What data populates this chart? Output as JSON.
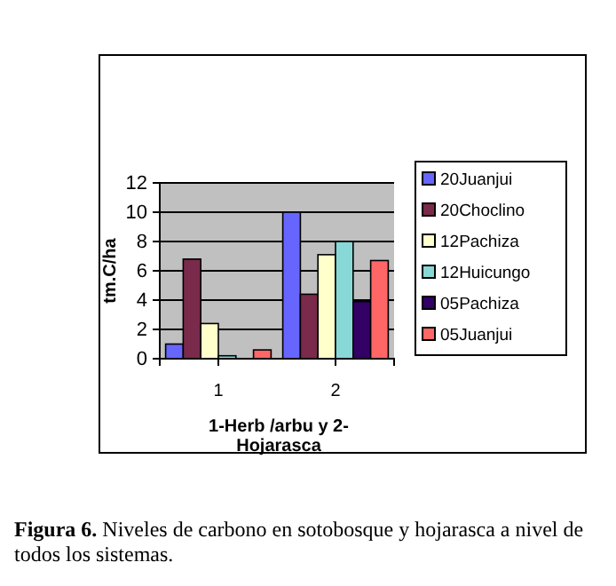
{
  "chart_data": {
    "type": "bar",
    "categories": [
      "1",
      "2"
    ],
    "series": [
      {
        "name": "20Juanjui",
        "color": "#6666ff",
        "values": [
          1.0,
          10.0
        ]
      },
      {
        "name": "20Choclino",
        "color": "#7a2a4a",
        "values": [
          6.8,
          4.4
        ]
      },
      {
        "name": "12Pachiza",
        "color": "#ffffcc",
        "values": [
          2.4,
          7.1
        ]
      },
      {
        "name": "12Huicungo",
        "color": "#88d8d8",
        "values": [
          0.2,
          8.0
        ]
      },
      {
        "name": "05Pachiza",
        "color": "#330066",
        "values": [
          0,
          3.9
        ]
      },
      {
        "name": "05Juanjui",
        "color": "#ff6666",
        "values": [
          0.6,
          6.7
        ]
      }
    ],
    "ylim": [
      0,
      12
    ],
    "yticks": [
      0,
      2,
      4,
      6,
      8,
      10,
      12
    ],
    "grid": "y",
    "legend": "right",
    "ylabel": "tm.C/ha",
    "xlabel": "1-Herb /arbu  y 2-Hojarasca",
    "annotations": [
      "Figura 6.",
      "Niveles de carbono en sotobosque y hojarasca a nivel de todos los sistemas."
    ]
  }
}
